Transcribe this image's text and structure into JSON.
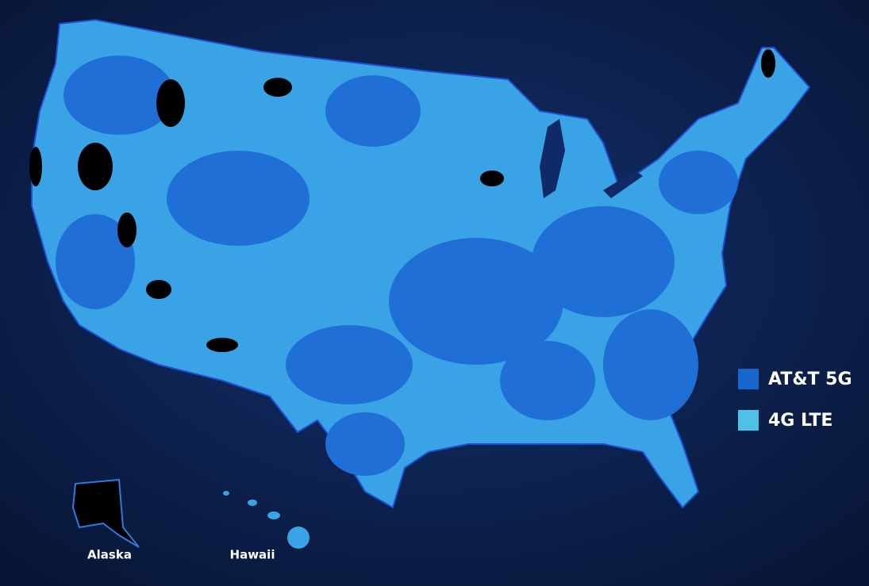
{
  "legend": {
    "items": [
      {
        "label": "AT&T 5G",
        "color": "#1766cc"
      },
      {
        "label": "4G LTE",
        "color": "#4cc2e6"
      }
    ]
  },
  "labels": {
    "alaska": "Alaska",
    "hawaii": "Hawaii"
  }
}
